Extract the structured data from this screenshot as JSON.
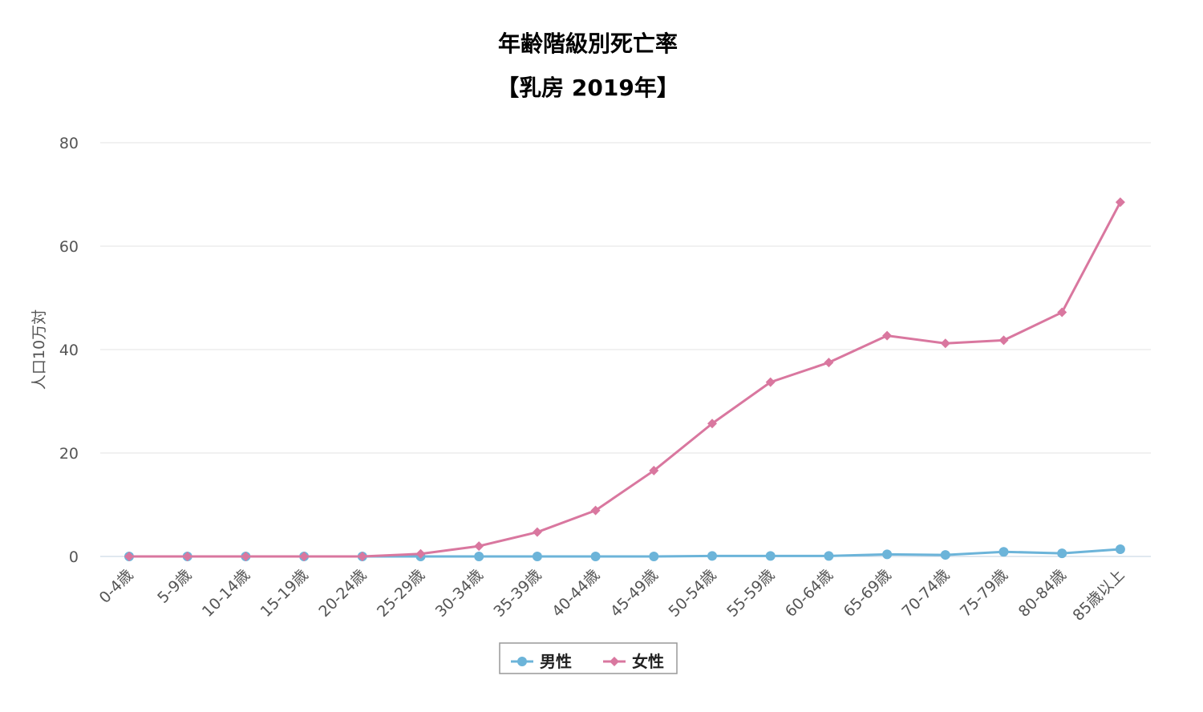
{
  "chart_data": {
    "type": "line",
    "title": "年齢階級別死亡率",
    "subtitle": "【乳房 2019年】",
    "xlabel": "",
    "ylabel": "人口10万対",
    "ylim": [
      0,
      80
    ],
    "yticks": [
      0,
      20,
      40,
      60,
      80
    ],
    "grid": true,
    "legend": "bottom-center",
    "categories": [
      "0-4歳",
      "5-9歳",
      "10-14歳",
      "15-19歳",
      "20-24歳",
      "25-29歳",
      "30-34歳",
      "35-39歳",
      "40-44歳",
      "45-49歳",
      "50-54歳",
      "55-59歳",
      "60-64歳",
      "65-69歳",
      "70-74歳",
      "75-79歳",
      "80-84歳",
      "85歳以上"
    ],
    "series": [
      {
        "name": "男性",
        "color": "#6cb4d9",
        "marker": "circle",
        "values": [
          0,
          0,
          0,
          0,
          0,
          0,
          0,
          0,
          0,
          0,
          0.1,
          0.1,
          0.1,
          0.4,
          0.3,
          0.9,
          0.6,
          1.4
        ]
      },
      {
        "name": "女性",
        "color": "#d9779f",
        "marker": "diamond",
        "values": [
          0,
          0,
          0,
          0,
          0,
          0.5,
          2.0,
          4.7,
          8.9,
          16.6,
          25.7,
          33.7,
          37.5,
          42.7,
          41.2,
          41.8,
          47.2,
          68.5
        ]
      }
    ]
  }
}
